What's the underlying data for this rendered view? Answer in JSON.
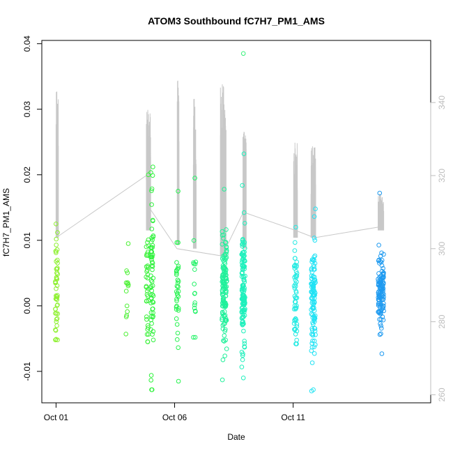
{
  "chart_data": {
    "type": "scatter",
    "title": "ATOM3 Southbound fC7H7_PM1_AMS",
    "xlabel": "Date",
    "ylabel": "fC7H7_PM1_AMS",
    "x_axis": {
      "unit": "days",
      "range": [
        -0.6,
        15.8
      ],
      "ticks": [
        {
          "value": 0,
          "label": "Oct 01"
        },
        {
          "value": 5,
          "label": "Oct 06"
        },
        {
          "value": 10,
          "label": "Oct 11"
        }
      ]
    },
    "y_axis": {
      "range": [
        -0.0148,
        0.0405
      ],
      "ticks": [
        {
          "value": -0.01,
          "label": "-0.01"
        },
        {
          "value": 0,
          "label": "0.00"
        },
        {
          "value": 0.01,
          "label": "0.01"
        },
        {
          "value": 0.02,
          "label": "0.02"
        },
        {
          "value": 0.03,
          "label": "0.03"
        },
        {
          "value": 0.04,
          "label": "0.04"
        }
      ]
    },
    "y2_axis": {
      "range": [
        257.8,
        357.0
      ],
      "ticks": [
        {
          "value": 260,
          "label": "260"
        },
        {
          "value": 280,
          "label": "280"
        },
        {
          "value": 300,
          "label": "300"
        },
        {
          "value": 320,
          "label": "320"
        },
        {
          "value": 340,
          "label": "340"
        }
      ],
      "color": "#bdbdbd"
    },
    "point_color_scale": [
      "#9aef2a",
      "#22f244",
      "#1ef0a8",
      "#22e8f4",
      "#1e8ef0"
    ],
    "secondary_line_color": "#c8c8c8",
    "series": [
      {
        "kind": "scatter",
        "x_center": 0.02,
        "spread": 0.05,
        "n": 50,
        "y_min": -0.0052,
        "y_max": 0.0125,
        "y_mean": 0.0025,
        "y_sd": 0.004,
        "color": "#8ef030"
      },
      {
        "kind": "scatter",
        "x_center": 3.0,
        "spread": 0.06,
        "n": 14,
        "y_min": -0.0043,
        "y_max": 0.0095,
        "y_mean": 0.002,
        "y_sd": 0.003,
        "color": "#4cf034"
      },
      {
        "kind": "scatter",
        "x_center": 3.85,
        "spread": 0.05,
        "n": 35,
        "y_min": -0.0055,
        "y_max": 0.02,
        "y_mean": 0.003,
        "y_sd": 0.006,
        "color": "#3cf13a"
      },
      {
        "kind": "scatter",
        "x_center": 4.05,
        "spread": 0.06,
        "n": 65,
        "y_min": -0.0128,
        "y_max": 0.0212,
        "y_mean": 0.004,
        "y_sd": 0.006,
        "color": "#30f23e"
      },
      {
        "kind": "scatter",
        "x_center": 5.12,
        "spread": 0.05,
        "n": 35,
        "y_min": -0.0115,
        "y_max": 0.0175,
        "y_mean": 0.003,
        "y_sd": 0.004,
        "color": "#28f250"
      },
      {
        "kind": "scatter",
        "x_center": 5.85,
        "spread": 0.06,
        "n": 18,
        "y_min": -0.0048,
        "y_max": 0.0195,
        "y_mean": 0.003,
        "y_sd": 0.004,
        "color": "#24f268"
      },
      {
        "kind": "scatter",
        "x_center": 7.1,
        "spread": 0.1,
        "n": 135,
        "y_min": -0.0113,
        "y_max": 0.0178,
        "y_mean": 0.002,
        "y_sd": 0.004,
        "color": "#20f09a"
      },
      {
        "kind": "scatter",
        "x_center": 7.9,
        "spread": 0.07,
        "n": 130,
        "y_min": -0.011,
        "y_max": 0.0232,
        "y_mean": 0.002,
        "y_sd": 0.005,
        "color": "#1ef0bc"
      },
      {
        "kind": "scatter",
        "x_center": 10.1,
        "spread": 0.06,
        "n": 55,
        "y_min": -0.0058,
        "y_max": 0.012,
        "y_mean": 0.002,
        "y_sd": 0.004,
        "color": "#22eae2"
      },
      {
        "kind": "scatter",
        "x_center": 10.85,
        "spread": 0.09,
        "n": 110,
        "y_min": -0.013,
        "y_max": 0.0148,
        "y_mean": 0.001,
        "y_sd": 0.004,
        "color": "#22e2f4"
      },
      {
        "kind": "scatter",
        "x_center": 13.7,
        "spread": 0.12,
        "n": 110,
        "y_min": -0.0073,
        "y_max": 0.0172,
        "y_mean": 0.002,
        "y_sd": 0.003,
        "color": "#1e9af0"
      }
    ],
    "outliers": [
      {
        "x": 7.9,
        "y": 0.0385,
        "color": "#36f27a"
      },
      {
        "x": 10.85,
        "y": -0.0128,
        "color": "#2ee6f0"
      }
    ],
    "secondary_line": {
      "axis": "y2",
      "color": "#c8c8c8",
      "path": [
        [
          0.0,
          303
        ],
        [
          3.8,
          320
        ],
        [
          3.85,
          312
        ],
        [
          5.1,
          300
        ],
        [
          7.0,
          298
        ],
        [
          7.9,
          310
        ],
        [
          10.1,
          305
        ],
        [
          10.9,
          303
        ],
        [
          13.7,
          306
        ]
      ],
      "spikes": [
        {
          "x_center": 0.05,
          "spread": 0.05,
          "n": 30,
          "base": 303,
          "top": 343
        },
        {
          "x_center": 3.9,
          "spread": 0.09,
          "n": 60,
          "base": 305,
          "top": 338
        },
        {
          "x_center": 5.15,
          "spread": 0.04,
          "n": 25,
          "base": 301,
          "top": 346
        },
        {
          "x_center": 5.85,
          "spread": 0.06,
          "n": 30,
          "base": 300,
          "top": 341
        },
        {
          "x_center": 7.05,
          "spread": 0.12,
          "n": 60,
          "base": 298,
          "top": 345
        },
        {
          "x_center": 7.95,
          "spread": 0.07,
          "n": 50,
          "base": 300,
          "top": 332
        },
        {
          "x_center": 10.1,
          "spread": 0.08,
          "n": 40,
          "base": 303,
          "top": 329
        },
        {
          "x_center": 10.85,
          "spread": 0.1,
          "n": 35,
          "base": 303,
          "top": 328
        },
        {
          "x_center": 13.7,
          "spread": 0.12,
          "n": 35,
          "base": 305,
          "top": 315
        }
      ]
    }
  }
}
